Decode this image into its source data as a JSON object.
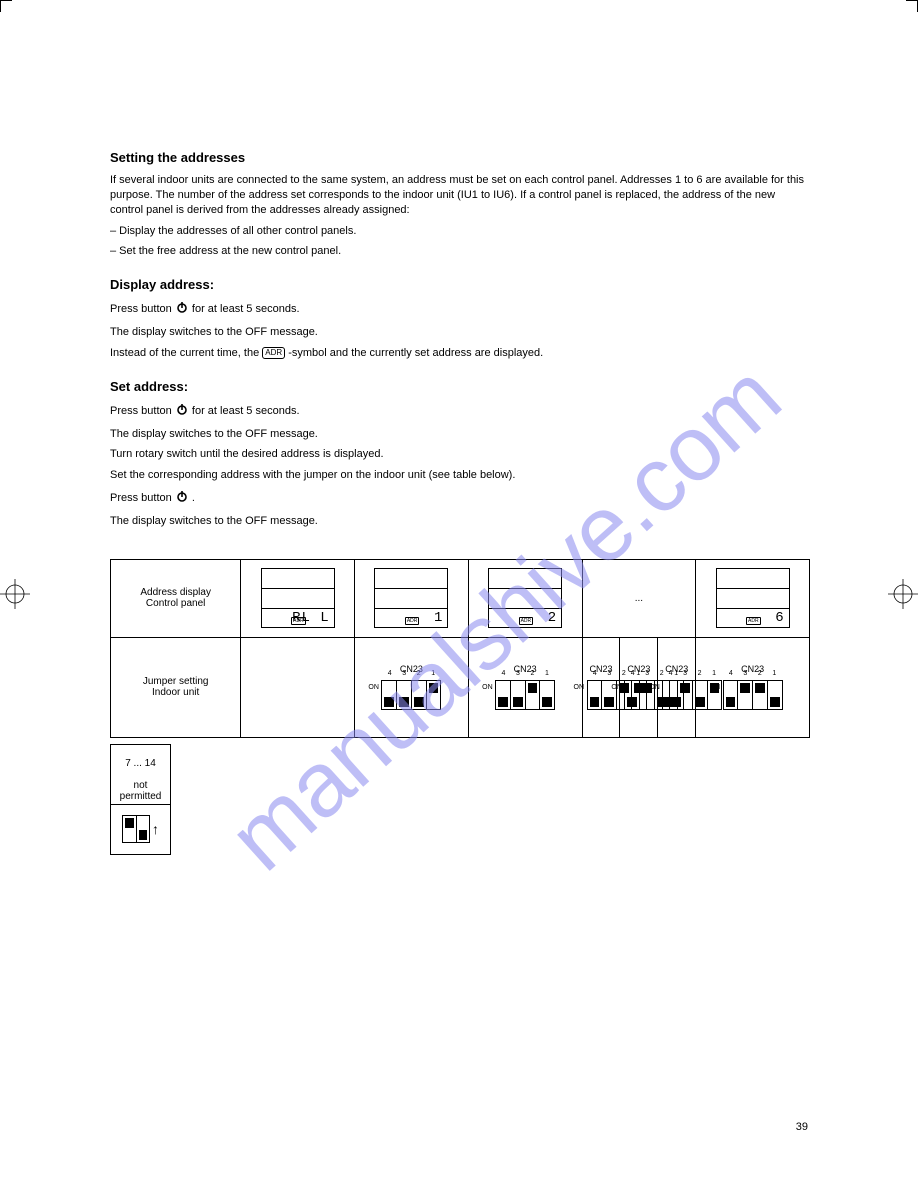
{
  "watermark": "manualshive.com",
  "section1": {
    "title": "Setting the addresses",
    "p1": "If several indoor units are connected to the same system, an address must be set on each control panel. Addresses 1 to 6 are available for this purpose. The number of the address set corresponds to the indoor unit (IU1 to IU6). If a control panel is replaced, the address of the new control panel is derived from the addresses already assigned:",
    "li1": "– Display the addresses of all other control panels.",
    "li2": "– Set the free address at the new control panel."
  },
  "section2": {
    "title": "Display address:",
    "s1_prefix": "Press button",
    "s1_suffix": "for at least 5 seconds.",
    "s2": "The display switches to the OFF message.",
    "s3_text1": "Instead of the current time, the",
    "s3_text2": "-symbol and the currently set address are displayed.",
    "adr_label": "ADR"
  },
  "section3": {
    "title": "Set address:",
    "s1_prefix": "Press button",
    "s1_suffix": "for at least 5 seconds.",
    "s2": "The display switches to the OFF message.",
    "s3a": "Turn rotary switch until the desired address is displayed.",
    "s3b": "Set the corresponding address with the jumper on the indoor unit (see table below).",
    "s4_prefix": "Press button",
    "s4_suffix": ".",
    "s5": "The display switches to the OFF message."
  },
  "table1": {
    "row1_header": "Address display\nControl panel",
    "cells": [
      {
        "adr": "ADR",
        "val": "RL L"
      },
      {
        "adr": "ADR",
        "val": "1"
      },
      {
        "adr": "ADR",
        "val": "2"
      },
      null,
      {
        "adr": "ADR",
        "val": "6"
      }
    ],
    "row2_header": "Jumper setting\nIndoor unit",
    "dip_numbers": [
      "4",
      "3",
      "2",
      "1"
    ],
    "dip_onlabel": "ON",
    "dip_label_top": "CN23",
    "dips": [
      null,
      [
        "off",
        "off",
        "off",
        "on"
      ],
      [
        "off",
        "off",
        "on",
        "off"
      ],
      [
        "off",
        "off",
        "on",
        "on"
      ],
      [
        "off",
        "on",
        "off",
        "off"
      ],
      [
        "off",
        "on",
        "off",
        "on"
      ],
      [
        "off",
        "on",
        "on",
        "off"
      ]
    ],
    "ellipsis": "..."
  },
  "table2": {
    "cells": [
      {
        "top": "7 ... 14",
        "bottom": "not\npermitted"
      },
      {
        "dip": [
          "on",
          "off"
        ],
        "arrow": "↑"
      }
    ]
  },
  "page_number": "39"
}
